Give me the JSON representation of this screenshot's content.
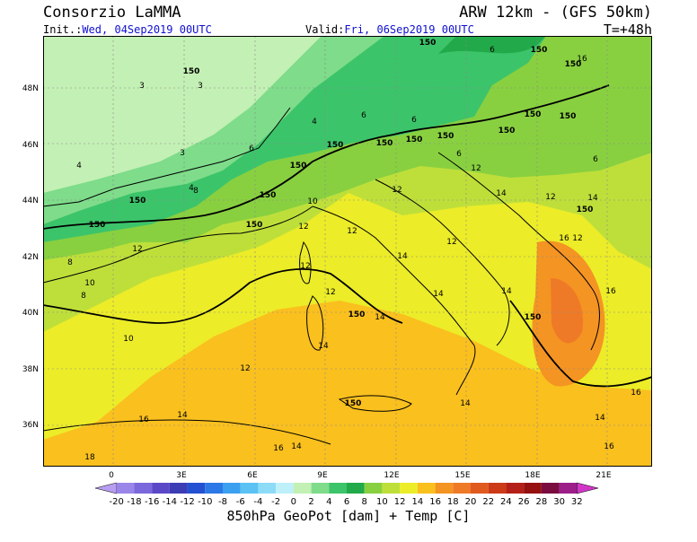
{
  "header": {
    "institution": "Consorzio LaMMA",
    "model": "ARW 12km - (GFS 50km)",
    "init_label": "Init.:",
    "init_value": "Wed, 04Sep2019 00UTC",
    "valid_label": "Valid:",
    "valid_value": "Fri, 06Sep2019 00UTC",
    "lead_time": "T=+48h"
  },
  "map": {
    "lon_ticks": [
      "0",
      "3E",
      "6E",
      "9E",
      "12E",
      "15E",
      "18E",
      "21E"
    ],
    "lat_ticks": [
      "48N",
      "46N",
      "44N",
      "42N",
      "40N",
      "38N",
      "36N"
    ],
    "field_colors": {
      "c2": "#c3f0b4",
      "c4": "#7edc8a",
      "c6": "#3cc46a",
      "c8": "#22aa4a",
      "c10": "#88d040",
      "c12": "#bedf3a",
      "c14": "#ecec28",
      "c16": "#fac01e",
      "c18": "#f49422",
      "c20": "#ee7a28"
    },
    "temp_labels": [
      "3",
      "3",
      "3",
      "4",
      "4",
      "4",
      "6",
      "6",
      "6",
      "6",
      "6",
      "6",
      "8",
      "8",
      "8",
      "10",
      "10",
      "10",
      "12",
      "12",
      "12",
      "12",
      "12",
      "12",
      "12",
      "12",
      "12",
      "12",
      "12",
      "14",
      "14",
      "14",
      "14",
      "14",
      "14",
      "14",
      "14",
      "14",
      "14",
      "16",
      "16",
      "16",
      "16",
      "16",
      "16",
      "18",
      "16",
      "14"
    ],
    "geopot_labels": [
      "150",
      "150",
      "150",
      "150",
      "150",
      "150",
      "150",
      "150",
      "150",
      "150",
      "150",
      "150",
      "150",
      "150",
      "150",
      "150",
      "150",
      "150",
      "150",
      "150"
    ]
  },
  "colorbar": {
    "tick_labels": [
      "-20",
      "-18",
      "-16",
      "-14",
      "-12",
      "-10",
      "-8",
      "-6",
      "-4",
      "-2",
      "0",
      "2",
      "4",
      "6",
      "8",
      "10",
      "12",
      "14",
      "16",
      "18",
      "20",
      "22",
      "24",
      "26",
      "28",
      "30",
      "32"
    ],
    "colors": [
      "#b89ef0",
      "#9a86e8",
      "#7a68dc",
      "#5a48c8",
      "#3c3cb4",
      "#2450d2",
      "#2c78e6",
      "#3ca0f0",
      "#5ac2f4",
      "#8cdcf8",
      "#bef0fa",
      "#c3f0b4",
      "#7edc8a",
      "#3cc46a",
      "#22aa4a",
      "#88d040",
      "#bedf3a",
      "#ecec28",
      "#fac01e",
      "#f49422",
      "#ee7a28",
      "#e05a20",
      "#cc3a18",
      "#b42018",
      "#961010",
      "#7a0c40",
      "#9c1e88",
      "#d236c8"
    ],
    "title": "850hPa GeoPot [dam] + Temp [C]"
  }
}
